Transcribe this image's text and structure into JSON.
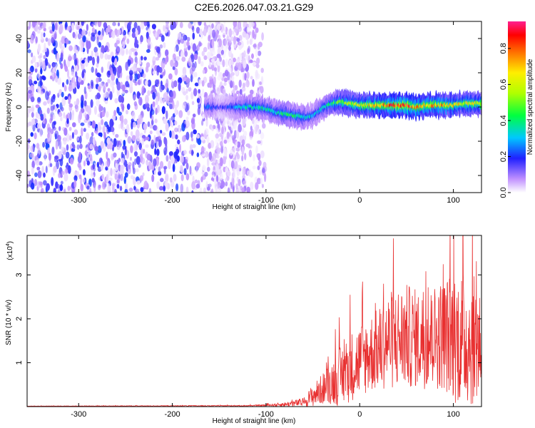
{
  "title": "C2E6.2026.047.03.21.G29",
  "colorbar": {
    "label": "Normalized spectral amplitude",
    "range": [
      0.0,
      0.95
    ],
    "ticks": [
      {
        "value": 0.0,
        "label": "0.0"
      },
      {
        "value": 0.2,
        "label": "0.2"
      },
      {
        "value": 0.4,
        "label": "0.4"
      },
      {
        "value": 0.6,
        "label": "0.6"
      },
      {
        "value": 0.8,
        "label": "0.8"
      }
    ]
  },
  "chart_data": [
    {
      "type": "heatmap",
      "name": "spectrogram",
      "xlabel": "Height of straight line (km)",
      "ylabel": "Frequency (Hz)",
      "xlim": [
        -355,
        130
      ],
      "ylim": [
        -50,
        50
      ],
      "xticks": [
        {
          "value": -300,
          "label": "-300"
        },
        {
          "value": -200,
          "label": "-200"
        },
        {
          "value": -100,
          "label": "-100"
        },
        {
          "value": 0,
          "label": "0"
        },
        {
          "value": 100,
          "label": "100"
        }
      ],
      "yticks": [
        {
          "value": -40,
          "label": "-40"
        },
        {
          "value": -20,
          "label": "-20"
        },
        {
          "value": 0,
          "label": "0"
        },
        {
          "value": 20,
          "label": "20"
        },
        {
          "value": 40,
          "label": "40"
        }
      ],
      "noise_region": {
        "x_start": -355,
        "x_end": -100
      },
      "signal_trace": {
        "x": [
          -160,
          -150,
          -140,
          -130,
          -120,
          -110,
          -100,
          -90,
          -80,
          -70,
          -60,
          -50,
          -45,
          -40,
          -30,
          -20,
          -10,
          0,
          10,
          20,
          30,
          40,
          50,
          60,
          70,
          80,
          90,
          100,
          110,
          120,
          130
        ],
        "freq": [
          0,
          0,
          0,
          0,
          0,
          0,
          -1,
          -3,
          -4,
          -5,
          -6,
          -5,
          -3,
          -1,
          2,
          3,
          2,
          1,
          1,
          1,
          1,
          1,
          1,
          0,
          1,
          1,
          1,
          1,
          2,
          2,
          2
        ],
        "amplitude": [
          0.25,
          0.15,
          0.2,
          0.3,
          0.35,
          0.35,
          0.35,
          0.35,
          0.4,
          0.4,
          0.35,
          0.3,
          0.3,
          0.35,
          0.4,
          0.5,
          0.55,
          0.6,
          0.65,
          0.7,
          0.75,
          0.8,
          0.8,
          0.75,
          0.7,
          0.7,
          0.7,
          0.65,
          0.6,
          0.6,
          0.6
        ]
      }
    },
    {
      "type": "line",
      "name": "snr",
      "xlabel": "Height of straight line (km)",
      "ylabel": "SNR (10 * v/v)",
      "scale_label": "(x10",
      "scale_exp": "4",
      "scale_close": ")",
      "xlim": [
        -355,
        130
      ],
      "ylim": [
        0,
        3.9
      ],
      "xticks": [
        {
          "value": -300,
          "label": "-300"
        },
        {
          "value": -200,
          "label": "-200"
        },
        {
          "value": -100,
          "label": "-100"
        },
        {
          "value": 0,
          "label": "0"
        },
        {
          "value": 100,
          "label": "100"
        }
      ],
      "yticks": [
        {
          "value": 1,
          "label": "1"
        },
        {
          "value": 2,
          "label": "2"
        },
        {
          "value": 3,
          "label": "3"
        }
      ],
      "color": "#e83030",
      "envelope": {
        "x": [
          -355,
          -120,
          -100,
          -80,
          -60,
          -50,
          -40,
          -30,
          -20,
          -10,
          0,
          10,
          20,
          30,
          40,
          50,
          60,
          70,
          80,
          90,
          100,
          110,
          120,
          130
        ],
        "mean": [
          0.01,
          0.02,
          0.03,
          0.05,
          0.1,
          0.25,
          0.4,
          0.55,
          0.7,
          0.9,
          1.05,
          1.2,
          1.3,
          1.5,
          1.55,
          1.6,
          1.55,
          1.5,
          1.6,
          1.65,
          1.6,
          1.55,
          1.5,
          1.5
        ],
        "spread": [
          0.005,
          0.01,
          0.02,
          0.05,
          0.1,
          0.25,
          0.35,
          0.5,
          0.7,
          0.8,
          0.85,
          0.9,
          0.95,
          1.1,
          1.2,
          1.2,
          1.15,
          1.1,
          1.2,
          1.3,
          1.5,
          1.55,
          1.5,
          1.4
        ]
      }
    }
  ]
}
